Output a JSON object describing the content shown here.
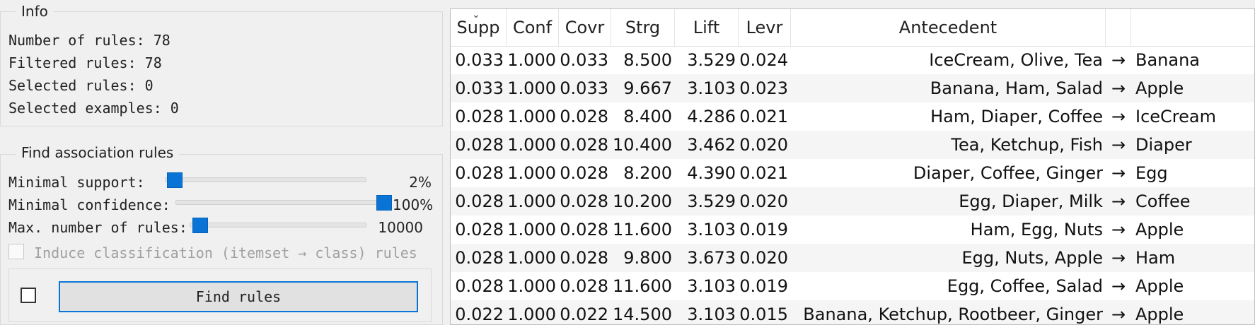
{
  "info": {
    "title": "Info",
    "number_of_rules": "Number of rules: 78",
    "filtered_rules": "Filtered rules: 78",
    "selected_rules": "Selected rules: 0",
    "selected_examples": "Selected examples: 0"
  },
  "find": {
    "title": "Find association rules",
    "min_support_label": "Minimal support:",
    "min_support_value": "2%",
    "min_support_fraction": 0.02,
    "min_confidence_label": "Minimal confidence:",
    "min_confidence_value": "100%",
    "min_confidence_fraction": 1.0,
    "max_rules_label": "Max. number of rules:",
    "max_rules_value": "10000",
    "induce_label": "Induce classification (itemset → class) rules",
    "find_button": "Find rules"
  },
  "table": {
    "headers": [
      "Supp",
      "Conf",
      "Covr",
      "Strg",
      "Lift",
      "Levr",
      "Antecedent",
      "",
      ""
    ],
    "arrow": "→",
    "rows": [
      [
        "0.033",
        "1.000",
        "0.033",
        "8.500",
        "3.529",
        "0.024",
        "IceCream, Olive, Tea",
        "→",
        "Banana"
      ],
      [
        "0.033",
        "1.000",
        "0.033",
        "9.667",
        "3.103",
        "0.023",
        "Banana, Ham, Salad",
        "→",
        "Apple"
      ],
      [
        "0.028",
        "1.000",
        "0.028",
        "8.400",
        "4.286",
        "0.021",
        "Ham, Diaper, Coffee",
        "→",
        "IceCream"
      ],
      [
        "0.028",
        "1.000",
        "0.028",
        "10.400",
        "3.462",
        "0.020",
        "Tea, Ketchup, Fish",
        "→",
        "Diaper"
      ],
      [
        "0.028",
        "1.000",
        "0.028",
        "8.200",
        "4.390",
        "0.021",
        "Diaper, Coffee, Ginger",
        "→",
        "Egg"
      ],
      [
        "0.028",
        "1.000",
        "0.028",
        "10.200",
        "3.529",
        "0.020",
        "Egg, Diaper, Milk",
        "→",
        "Coffee"
      ],
      [
        "0.028",
        "1.000",
        "0.028",
        "11.600",
        "3.103",
        "0.019",
        "Ham, Egg, Nuts",
        "→",
        "Apple"
      ],
      [
        "0.028",
        "1.000",
        "0.028",
        "9.800",
        "3.673",
        "0.020",
        "Egg, Nuts, Apple",
        "→",
        "Ham"
      ],
      [
        "0.028",
        "1.000",
        "0.028",
        "11.600",
        "3.103",
        "0.019",
        "Egg, Coffee, Salad",
        "→",
        "Apple"
      ],
      [
        "0.022",
        "1.000",
        "0.022",
        "14.500",
        "3.103",
        "0.015",
        "Banana, Ketchup, Rootbeer, Ginger",
        "→",
        "Apple"
      ]
    ]
  },
  "colors": {
    "accent": "#0a74d6",
    "row_alt": "#f5f5f5"
  }
}
